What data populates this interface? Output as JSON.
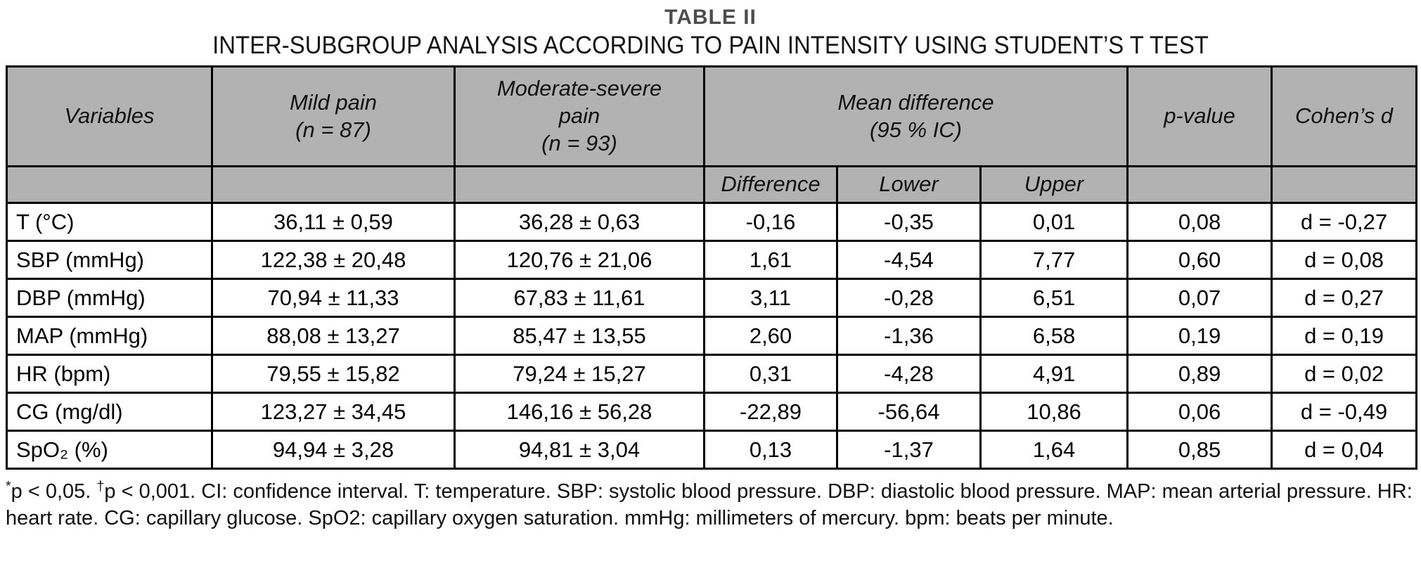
{
  "title": {
    "label": "TABLE II",
    "text": "INTER-SUBGROUP ANALYSIS ACCORDING TO PAIN INTENSITY USING STUDENT’S T TEST"
  },
  "table": {
    "header": {
      "variables": "Variables",
      "mild": "Mild pain\n(n = 87)",
      "moderate": "Moderate-severe\npain\n(n = 93)",
      "mean_difference": "Mean difference\n(95 % IC)",
      "difference": "Difference",
      "lower": "Lower",
      "upper": "Upper",
      "p_value": "p-value",
      "cohens_d": "Cohen’s d"
    },
    "rows": [
      {
        "variable": "T (°C)",
        "mild": "36,11 ± 0,59",
        "moderate": "36,28 ± 0,63",
        "difference": "-0,16",
        "lower": "-0,35",
        "upper": "0,01",
        "p_value": "0,08",
        "cohens_d": "d = -0,27"
      },
      {
        "variable": "SBP (mmHg)",
        "mild": "122,38 ± 20,48",
        "moderate": "120,76 ± 21,06",
        "difference": "1,61",
        "lower": "-4,54",
        "upper": "7,77",
        "p_value": "0,60",
        "cohens_d": "d = 0,08"
      },
      {
        "variable": "DBP (mmHg)",
        "mild": "70,94 ± 11,33",
        "moderate": "67,83 ± 11,61",
        "difference": "3,11",
        "lower": "-0,28",
        "upper": "6,51",
        "p_value": "0,07",
        "cohens_d": "d = 0,27"
      },
      {
        "variable": "MAP (mmHg)",
        "mild": "88,08 ± 13,27",
        "moderate": "85,47 ± 13,55",
        "difference": "2,60",
        "lower": "-1,36",
        "upper": "6,58",
        "p_value": "0,19",
        "cohens_d": "d = 0,19"
      },
      {
        "variable": "HR (bpm)",
        "mild": "79,55 ± 15,82",
        "moderate": "79,24 ± 15,27",
        "difference": "0,31",
        "lower": "-4,28",
        "upper": "4,91",
        "p_value": "0,89",
        "cohens_d": "d = 0,02"
      },
      {
        "variable": "CG (mg/dl)",
        "mild": "123,27 ± 34,45",
        "moderate": "146,16 ± 56,28",
        "difference": "-22,89",
        "lower": "-56,64",
        "upper": "10,86",
        "p_value": "0,06",
        "cohens_d": "d = -0,49"
      },
      {
        "variable": "SpO₂ (%)",
        "mild": "94,94 ± 3,28",
        "moderate": "94,81 ± 3,04",
        "difference": "0,13",
        "lower": "-1,37",
        "upper": "1,64",
        "p_value": "0,85",
        "cohens_d": "d = 0,04"
      }
    ]
  },
  "footnote": {
    "segments": [
      {
        "sup": true,
        "text": "*"
      },
      {
        "sup": false,
        "text": "p < 0,05. "
      },
      {
        "sup": true,
        "text": "†"
      },
      {
        "sup": false,
        "text": "p < 0,001. CI: confidence interval. T: temperature. SBP: systolic blood pressure. DBP: diastolic blood pressure. MAP: mean arterial pressure. HR: heart rate. CG: capillary glucose. SpO2: capillary oxygen saturation. mmHg: millimeters of mercury. bpm: beats per minute."
      }
    ]
  },
  "colors": {
    "header_bg": "#b2b2b2",
    "border": "#000000",
    "title_label": "#4d4d4d",
    "text": "#111111"
  }
}
